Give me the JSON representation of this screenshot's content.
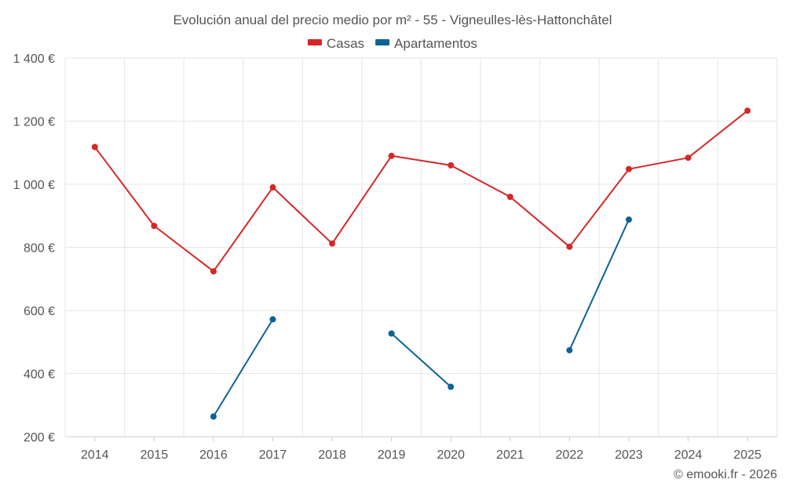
{
  "chart_data": {
    "type": "line",
    "title": "Evolución anual del precio medio por m² - 55 - Vigneulles-lès-Hattonchâtel",
    "xlabel": "",
    "ylabel": "",
    "categories": [
      "2014",
      "2015",
      "2016",
      "2017",
      "2018",
      "2019",
      "2020",
      "2021",
      "2022",
      "2023",
      "2024",
      "2025"
    ],
    "ylim": [
      200,
      1400
    ],
    "yticks": [
      200,
      400,
      600,
      800,
      1000,
      1200,
      1400
    ],
    "ytick_labels": [
      "200 €",
      "400 €",
      "600 €",
      "800 €",
      "1 000 €",
      "1 200 €",
      "1 400 €"
    ],
    "grid": true,
    "legend_position": "top-center",
    "series": [
      {
        "name": "Casas",
        "color": "#d62728",
        "values": [
          1118,
          868,
          724,
          990,
          812,
          1090,
          1060,
          960,
          802,
          1048,
          1084,
          1233
        ]
      },
      {
        "name": "Apartamentos",
        "color": "#0d6396",
        "values": [
          null,
          null,
          264,
          572,
          null,
          527,
          358,
          null,
          474,
          888,
          null,
          null
        ]
      }
    ]
  },
  "credit": "© emooki.fr - 2026"
}
